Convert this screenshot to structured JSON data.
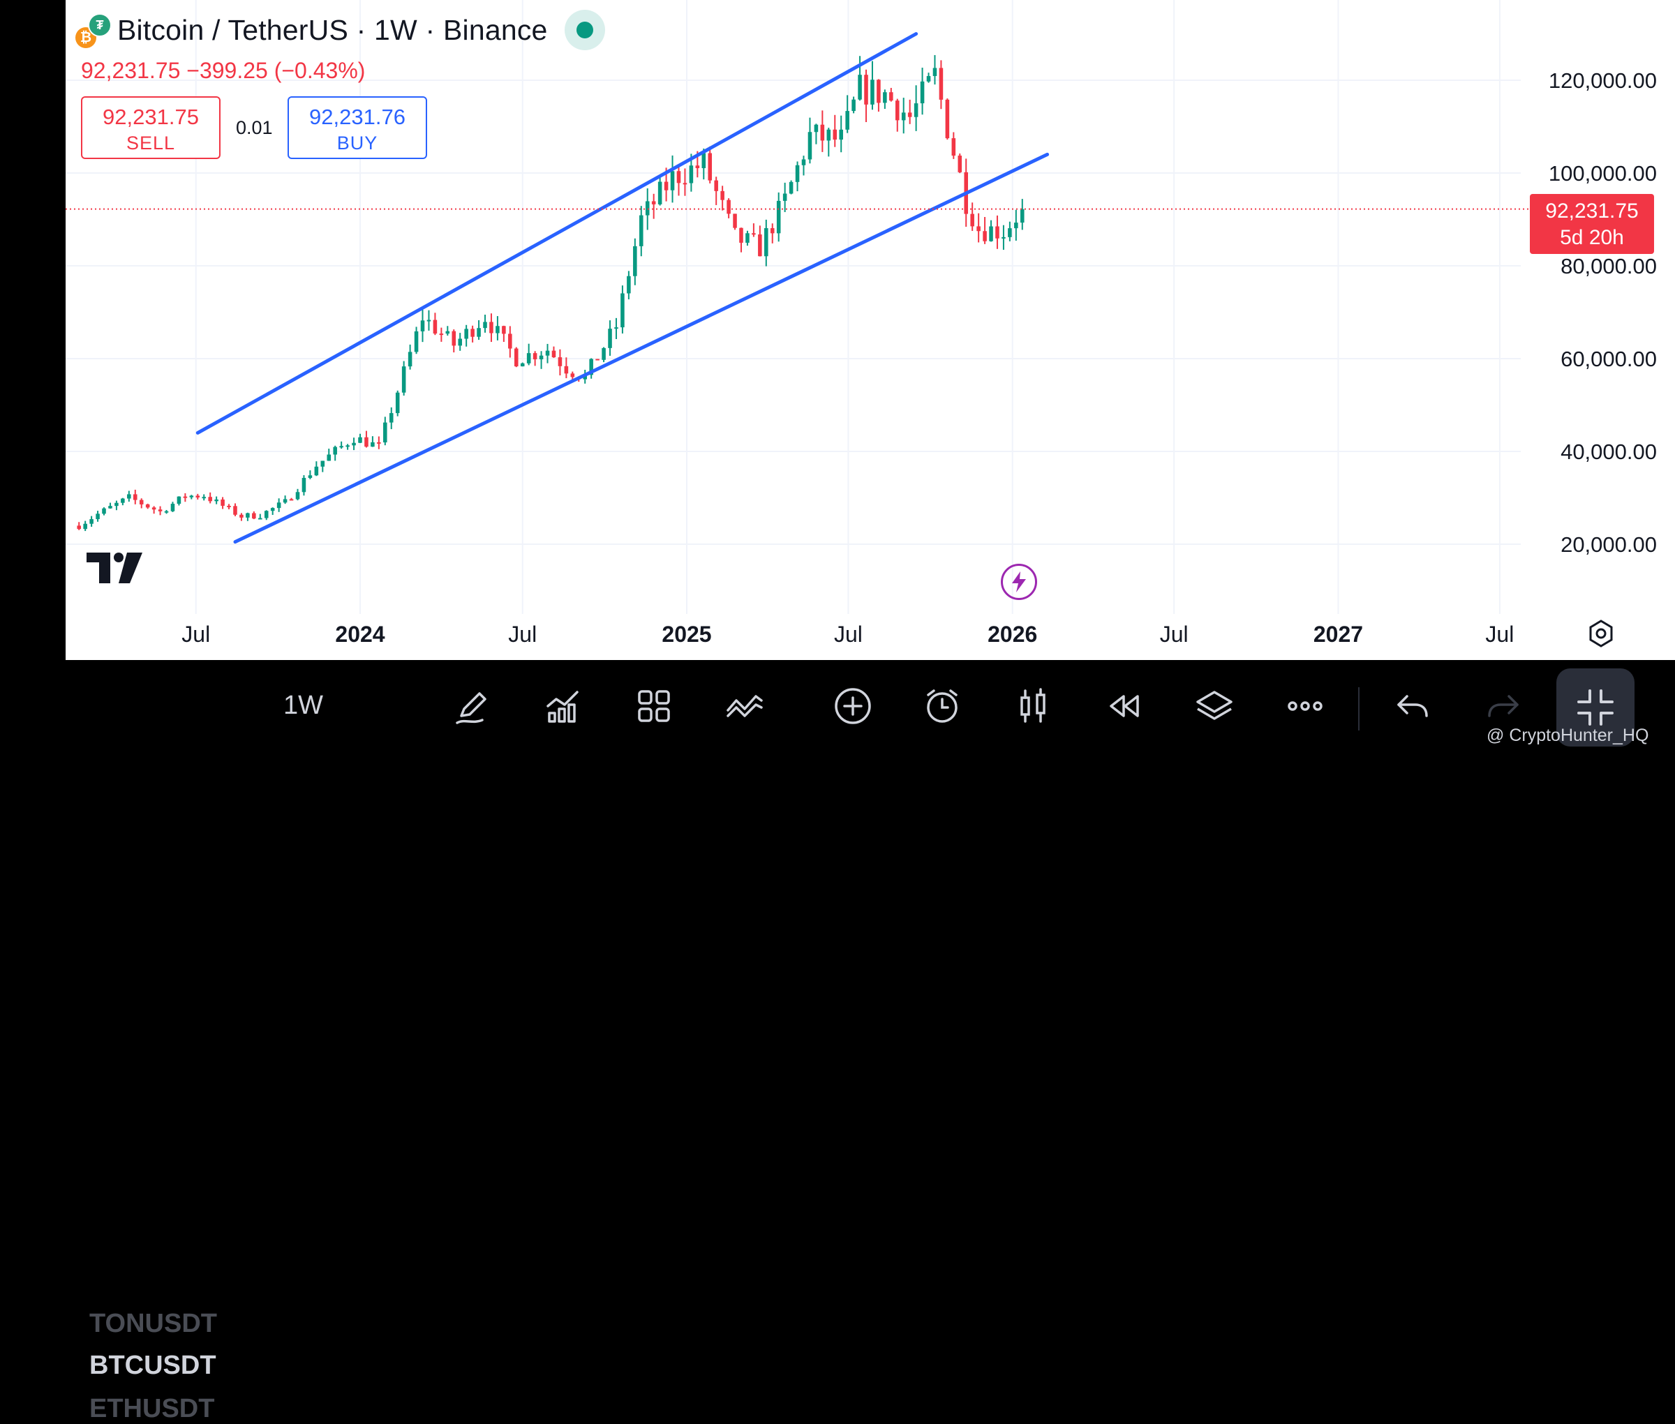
{
  "header": {
    "title": "Bitcoin / TetherUS · 1W · Binance",
    "base_icon": "bitcoin-coin-icon",
    "quote_icon": "tether-coin-icon",
    "price_change_text": "92,231.75  −399.25 (−0.43%)"
  },
  "trade": {
    "sell_price": "92,231.75",
    "sell_label": "SELL",
    "quantity": "0.01",
    "buy_price": "92,231.76",
    "buy_label": "BUY"
  },
  "last_price_tag": {
    "price": "92,231.75",
    "countdown": "5d 20h"
  },
  "toolbar": {
    "symbols": [
      "TONUSDT",
      "BTCUSDT",
      "ETHUSDT"
    ],
    "active_symbol": "BTCUSDT",
    "timeframe": "1W",
    "tools": [
      "pencil-icon",
      "indicators-icon",
      "layout-grid-icon",
      "trend-tools-icon",
      "add-icon",
      "alert-clock-icon",
      "candles-icon",
      "replay-icon",
      "layers-icon",
      "more-icon",
      "undo-icon",
      "redo-icon",
      "collapse-icon"
    ]
  },
  "watermark": "@ CryptoHunter_HQ",
  "colors": {
    "up": "#089981",
    "down": "#f23645",
    "channel": "#2962ff",
    "grid": "#f0f3fa"
  },
  "chart_data": {
    "type": "candlestick",
    "title": "Bitcoin / TetherUS · 1W · Binance",
    "y_ticks": [
      "120,000.00",
      "100,000.00",
      "80,000.00",
      "60,000.00",
      "40,000.00",
      "20,000.00"
    ],
    "y_tick_values": [
      120000,
      100000,
      80000,
      60000,
      40000,
      20000
    ],
    "ylim": [
      11500,
      139000
    ],
    "x_ticks": [
      {
        "label": "Jul",
        "date": "2023-07-01"
      },
      {
        "label": "2024",
        "date": "2024-01-01"
      },
      {
        "label": "Jul",
        "date": "2024-07-01"
      },
      {
        "label": "2025",
        "date": "2025-01-01"
      },
      {
        "label": "Jul",
        "date": "2025-07-01"
      },
      {
        "label": "2026",
        "date": "2026-01-01"
      },
      {
        "label": "Jul",
        "date": "2026-07-01"
      },
      {
        "label": "2027",
        "date": "2027-01-01"
      },
      {
        "label": "Jul",
        "date": "2027-07-01"
      }
    ],
    "last_price": 92231.75,
    "weekly_close_path": [
      {
        "date": "2023-02-20",
        "close": 24000
      },
      {
        "date": "2023-03-13",
        "close": 26500
      },
      {
        "date": "2023-04-17",
        "close": 30000
      },
      {
        "date": "2023-05-22",
        "close": 27000
      },
      {
        "date": "2023-06-19",
        "close": 30400
      },
      {
        "date": "2023-07-10",
        "close": 30500
      },
      {
        "date": "2023-08-21",
        "close": 26000
      },
      {
        "date": "2023-09-11",
        "close": 26300
      },
      {
        "date": "2023-10-09",
        "close": 29000
      },
      {
        "date": "2023-11-13",
        "close": 37000
      },
      {
        "date": "2023-12-25",
        "close": 43000
      },
      {
        "date": "2024-01-22",
        "close": 41000
      },
      {
        "date": "2024-02-19",
        "close": 57000
      },
      {
        "date": "2024-03-11",
        "close": 69000
      },
      {
        "date": "2024-04-15",
        "close": 63000
      },
      {
        "date": "2024-05-20",
        "close": 69000
      },
      {
        "date": "2024-06-24",
        "close": 60000
      },
      {
        "date": "2024-07-29",
        "close": 62000
      },
      {
        "date": "2024-08-19",
        "close": 58000
      },
      {
        "date": "2024-09-09",
        "close": 56000
      },
      {
        "date": "2024-10-14",
        "close": 67000
      },
      {
        "date": "2024-11-11",
        "close": 90000
      },
      {
        "date": "2024-12-16",
        "close": 99000
      },
      {
        "date": "2025-01-20",
        "close": 102000
      },
      {
        "date": "2025-02-24",
        "close": 86000
      },
      {
        "date": "2025-03-24",
        "close": 84000
      },
      {
        "date": "2025-04-21",
        "close": 94000
      },
      {
        "date": "2025-05-19",
        "close": 108000
      },
      {
        "date": "2025-06-23",
        "close": 107000
      },
      {
        "date": "2025-07-14",
        "close": 118000
      },
      {
        "date": "2025-08-11",
        "close": 117000
      },
      {
        "date": "2025-09-08",
        "close": 112000
      },
      {
        "date": "2025-10-06",
        "close": 121000
      },
      {
        "date": "2025-10-20",
        "close": 110000
      },
      {
        "date": "2025-11-10",
        "close": 94000
      },
      {
        "date": "2025-11-24",
        "close": 88000
      },
      {
        "date": "2025-12-22",
        "close": 87500
      },
      {
        "date": "2026-01-12",
        "close": 92231.75
      }
    ],
    "annotations": [
      {
        "type": "trendline",
        "name": "channel-upper",
        "from": {
          "date": "2023-07-03",
          "price": 44000
        },
        "to": {
          "date": "2025-09-15",
          "price": 130000
        }
      },
      {
        "type": "trendline",
        "name": "channel-lower",
        "from": {
          "date": "2023-08-14",
          "price": 20500
        },
        "to": {
          "date": "2026-02-09",
          "price": 104000
        }
      }
    ]
  }
}
